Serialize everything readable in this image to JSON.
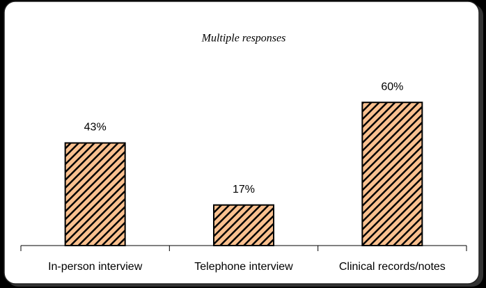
{
  "chart_data": {
    "type": "bar",
    "subtitle": "Multiple responses",
    "categories": [
      "In-person interview",
      "Telephone interview",
      "Clinical records/notes"
    ],
    "values": [
      43,
      17,
      60
    ],
    "value_labels": [
      "43%",
      "17%",
      "60%"
    ],
    "color": "#f9c08f"
  }
}
